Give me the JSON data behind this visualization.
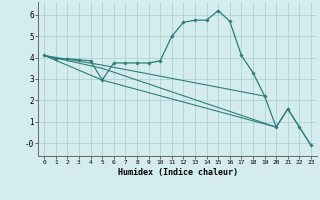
{
  "xlabel": "Humidex (Indice chaleur)",
  "ylabel": "",
  "background_color": "#d5ecee",
  "grid_color": "#aad4d6",
  "line_color": "#2e7d7a",
  "xlim": [
    -0.5,
    23.5
  ],
  "ylim": [
    -0.6,
    6.6
  ],
  "yticks": [
    0,
    1,
    2,
    3,
    4,
    5,
    6
  ],
  "ytick_labels": [
    "-0",
    "1",
    "2",
    "3",
    "4",
    "5",
    "6"
  ],
  "xticks": [
    0,
    1,
    2,
    3,
    4,
    5,
    6,
    7,
    8,
    9,
    10,
    11,
    12,
    13,
    14,
    15,
    16,
    17,
    18,
    19,
    20,
    21,
    22,
    23
  ],
  "lines": [
    {
      "x": [
        0,
        1,
        2,
        3,
        4,
        5,
        6,
        7,
        8,
        9,
        10,
        11,
        12,
        13,
        14,
        15,
        16,
        17,
        18,
        19,
        20,
        21,
        22,
        23
      ],
      "y": [
        4.1,
        3.95,
        3.95,
        3.9,
        3.85,
        2.95,
        3.75,
        3.75,
        3.75,
        3.75,
        3.85,
        5.0,
        5.65,
        5.75,
        5.75,
        6.2,
        5.7,
        4.1,
        3.3,
        2.2,
        0.75,
        1.6,
        0.75,
        -0.1
      ],
      "marker": true
    },
    {
      "x": [
        0,
        5,
        20,
        21,
        22,
        23
      ],
      "y": [
        4.1,
        2.95,
        0.75,
        1.6,
        0.75,
        -0.1
      ],
      "marker": false
    },
    {
      "x": [
        0,
        5,
        19
      ],
      "y": [
        4.1,
        3.65,
        2.2
      ],
      "marker": false
    },
    {
      "x": [
        0,
        5,
        20
      ],
      "y": [
        4.1,
        3.5,
        0.75
      ],
      "marker": false
    }
  ]
}
